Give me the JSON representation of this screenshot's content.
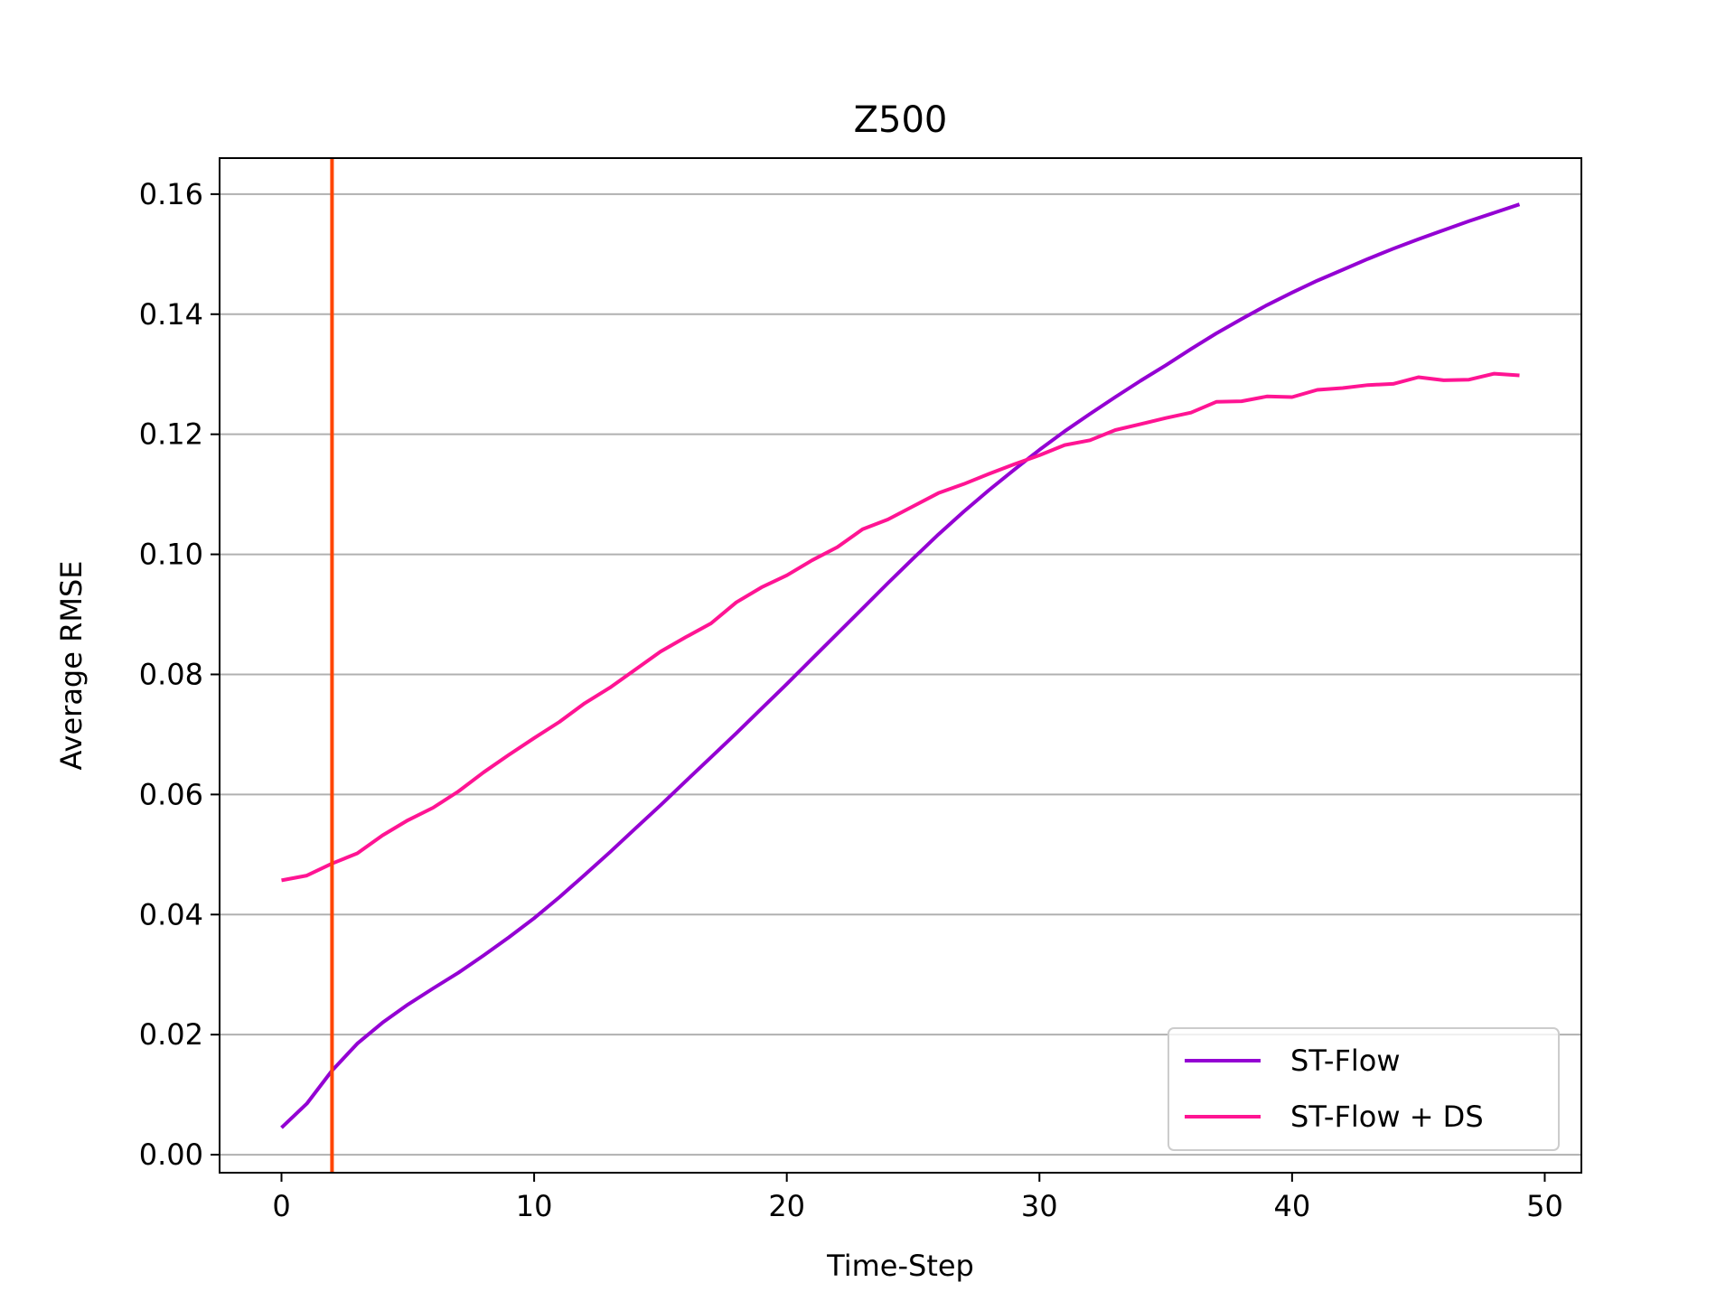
{
  "chart_data": {
    "type": "line",
    "title": "Z500",
    "xlabel": "Time-Step",
    "ylabel": "Average RMSE",
    "xlim": [
      -2.45,
      51.45
    ],
    "ylim": [
      -0.003,
      0.166
    ],
    "xticks": [
      0,
      10,
      20,
      30,
      40,
      50
    ],
    "xtick_labels": [
      "0",
      "10",
      "20",
      "30",
      "40",
      "50"
    ],
    "yticks": [
      0.0,
      0.02,
      0.04,
      0.06,
      0.08,
      0.1,
      0.12,
      0.14,
      0.16
    ],
    "ytick_labels": [
      "0.00",
      "0.02",
      "0.04",
      "0.06",
      "0.08",
      "0.10",
      "0.12",
      "0.14",
      "0.16"
    ],
    "grid": "horizontal",
    "legend_position": "lower-right",
    "vline": {
      "x": 2,
      "color": "#ff4500"
    },
    "x": [
      0,
      1,
      2,
      3,
      4,
      5,
      6,
      7,
      8,
      9,
      10,
      11,
      12,
      13,
      14,
      15,
      16,
      17,
      18,
      19,
      20,
      21,
      22,
      23,
      24,
      25,
      26,
      27,
      28,
      29,
      30,
      31,
      32,
      33,
      34,
      35,
      36,
      37,
      38,
      39,
      40,
      41,
      42,
      43,
      44,
      45,
      46,
      47,
      48,
      49
    ],
    "series": [
      {
        "name": "ST-Flow",
        "color": "#9400d3",
        "values": [
          0.0045,
          0.0085,
          0.014,
          0.0185,
          0.022,
          0.025,
          0.0277,
          0.0303,
          0.0332,
          0.0362,
          0.0394,
          0.0429,
          0.0466,
          0.0504,
          0.0543,
          0.0582,
          0.0622,
          0.0662,
          0.0702,
          0.0743,
          0.0784,
          0.0826,
          0.0868,
          0.091,
          0.0952,
          0.0993,
          0.1033,
          0.1071,
          0.1107,
          0.1141,
          0.1174,
          0.1205,
          0.1234,
          0.1262,
          0.1289,
          0.1315,
          0.1342,
          0.1368,
          0.1392,
          0.1415,
          0.1436,
          0.1456,
          0.1474,
          0.1492,
          0.1509,
          0.1525,
          0.154,
          0.1555,
          0.1569,
          0.1583
        ]
      },
      {
        "name": "ST-Flow + DS",
        "color": "#ff1493",
        "values": [
          0.0457,
          0.0465,
          0.0485,
          0.0502,
          0.0532,
          0.0557,
          0.0578,
          0.0605,
          0.0637,
          0.0666,
          0.0694,
          0.0721,
          0.0752,
          0.0778,
          0.0808,
          0.0838,
          0.0862,
          0.0885,
          0.092,
          0.0945,
          0.0965,
          0.099,
          0.1012,
          0.1042,
          0.1058,
          0.108,
          0.1102,
          0.1117,
          0.1134,
          0.115,
          0.1165,
          0.1182,
          0.119,
          0.1207,
          0.1217,
          0.1227,
          0.1236,
          0.1254,
          0.1255,
          0.1263,
          0.1262,
          0.1274,
          0.1277,
          0.1282,
          0.1284,
          0.1295,
          0.129,
          0.1291,
          0.1301,
          0.1298
        ]
      }
    ]
  }
}
